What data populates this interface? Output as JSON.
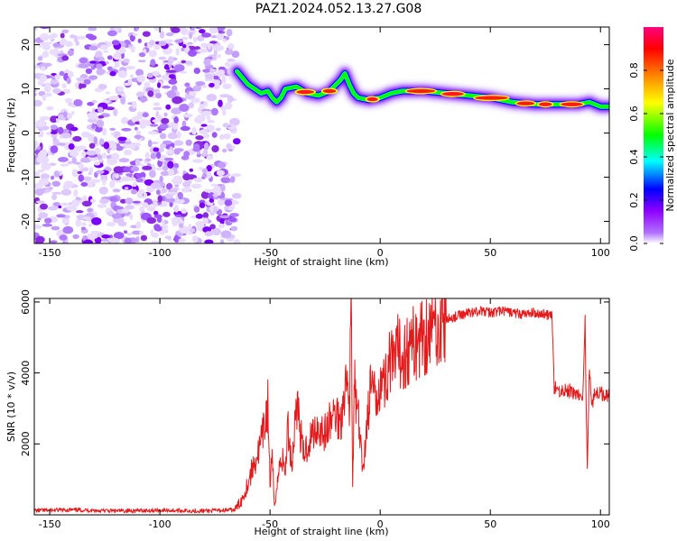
{
  "title": "PAZ1.2024.052.13.27.G08",
  "chart_data": [
    {
      "type": "heatmap",
      "name": "spectrogram",
      "xlabel": "Height of straight line (km)",
      "ylabel": "Frequency (Hz)",
      "xlim": [
        -157,
        104
      ],
      "ylim": [
        -25,
        24
      ],
      "xticks": [
        -150,
        -100,
        -50,
        0,
        50,
        100
      ],
      "yticks": [
        -20,
        -10,
        0,
        10,
        20
      ],
      "noise_region_x": [
        -157,
        -65
      ],
      "ridge": {
        "x": [
          -65,
          -60,
          -57,
          -54,
          -51,
          -49,
          -47,
          -45,
          -43,
          -38,
          -33,
          -28,
          -23,
          -18,
          -16,
          -14,
          -12,
          -10,
          -5,
          0,
          5,
          10,
          20,
          30,
          40,
          50,
          60,
          70,
          80,
          90,
          95,
          100,
          104
        ],
        "y": [
          14,
          11,
          10,
          9,
          9.5,
          8,
          7,
          8,
          10,
          10.5,
          9,
          8.5,
          9.5,
          12,
          13.5,
          11,
          9,
          8,
          7.5,
          8,
          9,
          9.5,
          9.5,
          9,
          8.5,
          8,
          7,
          6.5,
          6.5,
          6.5,
          7,
          6,
          6
        ]
      },
      "colorbar": {
        "label": "Normalized spectral amplitude",
        "ticks": [
          0.0,
          0.2,
          0.4,
          0.6,
          0.8
        ],
        "range": [
          0,
          1
        ],
        "colors": [
          "#ffffff",
          "#8f00ff",
          "#0000ff",
          "#00ffff",
          "#00ff00",
          "#ffff00",
          "#ff8000",
          "#ff0000",
          "#ff0080"
        ]
      }
    },
    {
      "type": "line",
      "name": "snr",
      "xlabel": "Height of straight line (km)",
      "ylabel": "SNR (10 * v/v)",
      "xlim": [
        -157,
        104
      ],
      "ylim": [
        0,
        6100
      ],
      "xticks": [
        -150,
        -100,
        -50,
        0,
        50,
        100
      ],
      "yticks": [
        2000,
        4000,
        6000
      ],
      "color": "#e41a1c",
      "x": [
        -157,
        -140,
        -120,
        -100,
        -80,
        -66,
        -63,
        -60,
        -58,
        -55,
        -53,
        -51,
        -50,
        -49,
        -48,
        -46,
        -45,
        -43,
        -42,
        -40,
        -38,
        -35,
        -32,
        -30,
        -28,
        -25,
        -22,
        -20,
        -18,
        -16,
        -14,
        -13,
        -12.5,
        -12,
        -11.5,
        -11,
        -10,
        -8,
        -6,
        -4,
        -2,
        0,
        2,
        4,
        6,
        8,
        10,
        15,
        20,
        25,
        30,
        35,
        40,
        45,
        50,
        55,
        60,
        65,
        70,
        75,
        78,
        79,
        80,
        85,
        90,
        92,
        93,
        94,
        95,
        96,
        98,
        100,
        104
      ],
      "y": [
        120,
        140,
        110,
        130,
        110,
        140,
        400,
        900,
        1300,
        1800,
        2300,
        3100,
        900,
        1500,
        300,
        1200,
        1700,
        1200,
        2500,
        1400,
        3300,
        1700,
        2100,
        2400,
        2500,
        2300,
        2700,
        2900,
        2600,
        3800,
        3300,
        6000,
        600,
        2600,
        4000,
        3000,
        2800,
        1200,
        2600,
        3700,
        3100,
        4000,
        3600,
        4400,
        4100,
        4600,
        4500,
        4800,
        5100,
        5300,
        5500,
        5600,
        5700,
        5750,
        5700,
        5750,
        5700,
        5650,
        5700,
        5650,
        5600,
        3600,
        3500,
        3500,
        3400,
        3200,
        5500,
        1200,
        4300,
        3100,
        3500,
        3400,
        3400
      ]
    }
  ]
}
